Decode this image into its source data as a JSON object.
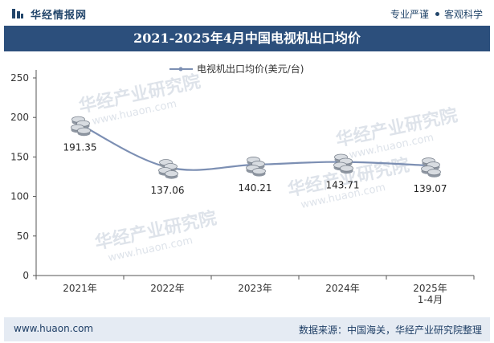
{
  "header": {
    "brand": "华经情报网",
    "slogan_left": "专业严谨",
    "slogan_right": "客观科学"
  },
  "watermark": {
    "text": "华经产业研究院",
    "url": "www.huaon.com"
  },
  "colors": {
    "title_bg": "#2c4f7c",
    "line": "#7c8fb3",
    "footer_bg": "#e5ebf3",
    "brand": "#23466b"
  },
  "chart_data": {
    "type": "line",
    "title": "2021-2025年4月中国电视机出口均价",
    "categories": [
      "2021年",
      "2022年",
      "2023年",
      "2024年",
      "2025年\n1-4月"
    ],
    "series": [
      {
        "name": "电视机出口均价(美元/台)",
        "values": [
          191.35,
          137.06,
          140.21,
          143.71,
          139.07
        ]
      }
    ],
    "data_labels": [
      "191.35",
      "137.06",
      "140.21",
      "143.71",
      "139.07"
    ],
    "y_ticks": [
      "0",
      "50",
      "100",
      "150",
      "200",
      "250"
    ],
    "ylim": [
      0,
      250
    ],
    "legend_position": "top-center",
    "grid": false,
    "marker": "coin-stack-icon"
  },
  "footer": {
    "site": "www.huaon.com",
    "source": "数据来源：中国海关，华经产业研究院整理"
  }
}
